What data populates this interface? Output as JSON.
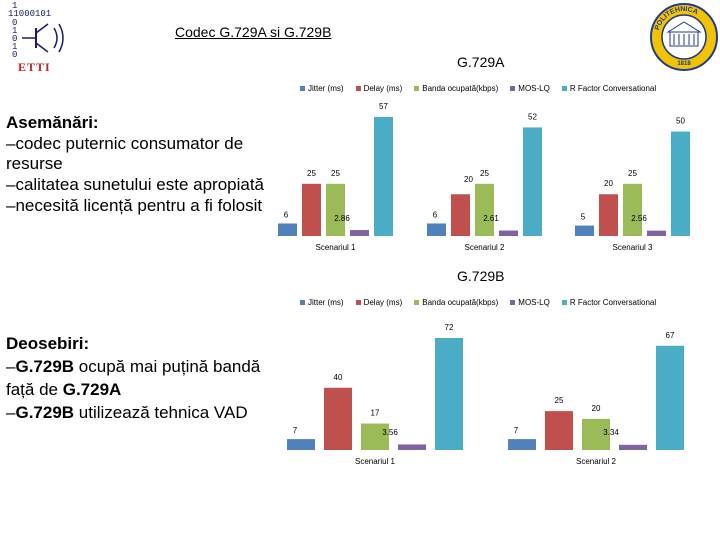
{
  "header": {
    "title": "Codec G.729A si G.729B",
    "logo_left": {
      "bits_rows": [
        "1",
        "11000101",
        "0",
        "1",
        "0",
        "1",
        "0",
        "0"
      ],
      "name": "ETTI"
    },
    "logo_right": {
      "text": "POLITEHNICA",
      "year": "1818"
    }
  },
  "colors": {
    "jitter": "#4f81bd",
    "delay": "#c0504d",
    "banda": "#9bbb59",
    "mos": "#8064a2",
    "rfactor": "#4bacc6"
  },
  "similarities": {
    "heading": "Asemănări:",
    "lines": [
      "–codec puternic consumator de resurse",
      "–calitatea sunetului este apropiată",
      "–necesită licență pentru a fi folosit"
    ]
  },
  "differences": {
    "heading": "Deosebiri:",
    "lines": [
      {
        "prefix": "–",
        "bold": "G.729B",
        "text": " ocupă mai puțină bandă"
      },
      {
        "prefix": "",
        "bold": "",
        "text": "față de ",
        "bold2": "G.729A"
      },
      {
        "prefix": "–",
        "bold": "G.729B",
        "text": " utilizează tehnica VAD"
      }
    ]
  },
  "chart_data": [
    {
      "type": "bar",
      "title": "G.729A",
      "legend": [
        "Jitter (ms)",
        "Delay (ms)",
        "Banda ocupată(kbps)",
        "MOS-LQ",
        "R Factor Conversational"
      ],
      "categories": [
        "Scenariul 1",
        "Scenariul 2",
        "Scenariul 3"
      ],
      "series": [
        {
          "name": "Jitter (ms)",
          "values": [
            6,
            6,
            5
          ],
          "labels": [
            "6",
            "6",
            "5"
          ]
        },
        {
          "name": "Delay (ms)",
          "values": [
            25,
            20,
            20
          ],
          "labels": [
            "25",
            "",
            "20"
          ]
        },
        {
          "name": "Banda ocupată(kbps)",
          "values": [
            25,
            25,
            25
          ],
          "labels": [
            "25",
            "25",
            "25"
          ]
        },
        {
          "name": "MOS-LQ",
          "values": [
            2.86,
            2.61,
            2.56
          ],
          "labels": [
            "2.86",
            "2.61",
            "2.56"
          ]
        },
        {
          "name": "R Factor Conversational",
          "values": [
            57,
            52,
            50
          ],
          "labels": [
            "57",
            "52",
            "50"
          ]
        }
      ],
      "extra_labels": [
        "20"
      ],
      "ylim": [
        0,
        60
      ]
    },
    {
      "type": "bar",
      "title": "G.729B",
      "legend": [
        "Jitter (ms)",
        "Delay (ms)",
        "Banda ocupată(kbps)",
        "MOS-LQ",
        "R Factor Conversational"
      ],
      "categories": [
        "Scenariul 1",
        "Scenariul 2"
      ],
      "series": [
        {
          "name": "Jitter (ms)",
          "values": [
            7,
            7
          ],
          "labels": [
            "7",
            "7"
          ]
        },
        {
          "name": "Delay (ms)",
          "values": [
            40,
            25
          ],
          "labels": [
            "40",
            "25"
          ]
        },
        {
          "name": "Banda ocupată(kbps)",
          "values": [
            17,
            20
          ],
          "labels": [
            "17",
            "20"
          ]
        },
        {
          "name": "MOS-LQ",
          "values": [
            3.56,
            3.34
          ],
          "labels": [
            "3.56",
            "3.34"
          ]
        },
        {
          "name": "R Factor Conversational",
          "values": [
            72,
            67
          ],
          "labels": [
            "72",
            "67"
          ]
        }
      ],
      "ylim": [
        0,
        75
      ]
    }
  ]
}
